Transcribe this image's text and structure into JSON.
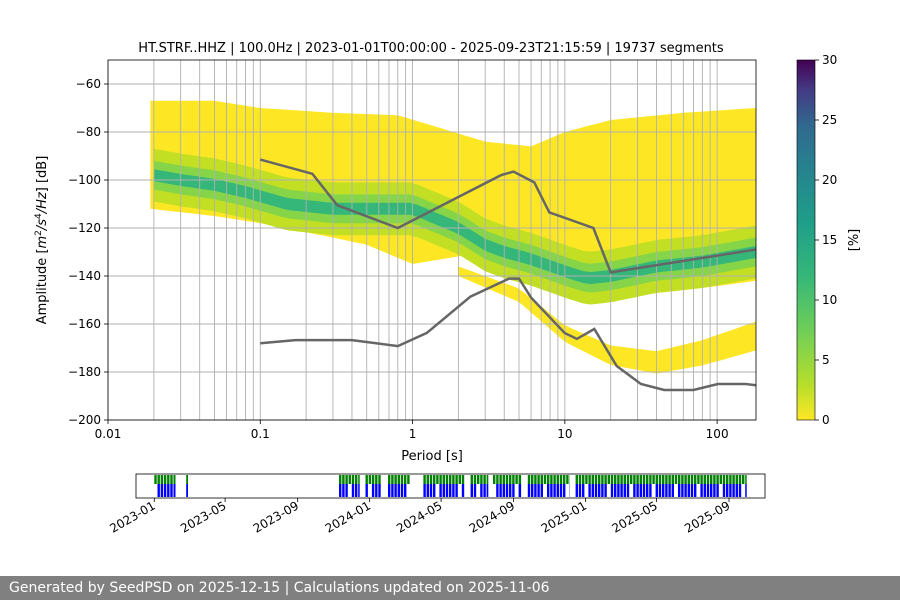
{
  "footer": {
    "text": "Generated by SeedPSD on 2025-12-15 | Calculations updated on 2025-11-06"
  },
  "colors": {
    "primary": "#d2d2d2",
    "accent": "#808080",
    "background": "#ffffff",
    "text": "#000000",
    "grid": "#b0b0b0",
    "noise_model": "#666666",
    "coverage_data": "#0000ff",
    "coverage_green": "#008000"
  },
  "chart_data": [
    {
      "type": "heatmap",
      "title": "HT.STRF..HHZ | 100.0Hz | 2023-01-01T00:00:00 - 2025-09-23T21:15:59 | 19737 segments",
      "xlabel": "Period [s]",
      "ylabel": "Amplitude [m^2/s^4/Hz] [dB]",
      "xscale": "log",
      "xlim": [
        0.01,
        180
      ],
      "ylim": [
        -200,
        -50
      ],
      "xticks": [
        "0.01",
        "0.1",
        "1",
        "10",
        "100"
      ],
      "yticks": [
        "−60",
        "−80",
        "−100",
        "−120",
        "−140",
        "−160",
        "−180",
        "−200"
      ],
      "colorbar": {
        "label": "[%]",
        "range": [
          0,
          30
        ],
        "ticks": [
          "0",
          "5",
          "10",
          "15",
          "20",
          "25",
          "30"
        ]
      },
      "mode_curve": [
        [
          0.02,
          -98
        ],
        [
          0.03,
          -100
        ],
        [
          0.05,
          -102
        ],
        [
          0.08,
          -105
        ],
        [
          0.15,
          -110
        ],
        [
          0.3,
          -112
        ],
        [
          0.5,
          -112
        ],
        [
          1,
          -112
        ],
        [
          2,
          -120
        ],
        [
          3,
          -127
        ],
        [
          4,
          -130
        ],
        [
          6,
          -133
        ],
        [
          10,
          -138
        ],
        [
          14,
          -141
        ],
        [
          20,
          -140
        ],
        [
          40,
          -136
        ],
        [
          80,
          -134
        ],
        [
          180,
          -130
        ]
      ],
      "upper_edge": [
        [
          0.019,
          -67
        ],
        [
          0.05,
          -67
        ],
        [
          0.1,
          -70
        ],
        [
          0.3,
          -72
        ],
        [
          0.8,
          -73
        ],
        [
          3,
          -84
        ],
        [
          6,
          -86
        ],
        [
          10,
          -80
        ],
        [
          20,
          -75
        ],
        [
          60,
          -72
        ],
        [
          180,
          -70
        ]
      ],
      "lower_edge": [
        [
          0.019,
          -112
        ],
        [
          0.05,
          -115
        ],
        [
          0.1,
          -118
        ],
        [
          0.3,
          -124
        ],
        [
          0.5,
          -127
        ],
        [
          1,
          -135
        ],
        [
          3,
          -130
        ],
        [
          5,
          -140
        ],
        [
          7,
          -145
        ],
        [
          15,
          -148
        ],
        [
          30,
          -148
        ],
        [
          80,
          -145
        ],
        [
          180,
          -142
        ]
      ],
      "outlier_band": [
        [
          2,
          -138
        ],
        [
          5,
          -148
        ],
        [
          10,
          -164
        ],
        [
          20,
          -173
        ],
        [
          40,
          -176
        ],
        [
          80,
          -172
        ],
        [
          180,
          -165
        ]
      ],
      "nhnm": [
        [
          0.1,
          -91.5
        ],
        [
          0.22,
          -97.4
        ],
        [
          0.32,
          -110.5
        ],
        [
          0.8,
          -120
        ],
        [
          3.8,
          -98
        ],
        [
          4.6,
          -96.5
        ],
        [
          6.3,
          -101
        ],
        [
          7.9,
          -113.5
        ],
        [
          15.4,
          -120
        ],
        [
          20,
          -138.5
        ],
        [
          354.8,
          -126
        ]
      ],
      "nlnm": [
        [
          0.1,
          -168
        ],
        [
          0.17,
          -166.7
        ],
        [
          0.4,
          -166.7
        ],
        [
          0.8,
          -169.2
        ],
        [
          1.24,
          -163.7
        ],
        [
          2.4,
          -148.6
        ],
        [
          4.3,
          -141.1
        ],
        [
          5,
          -141.1
        ],
        [
          6,
          -149
        ],
        [
          10,
          -163.8
        ],
        [
          12,
          -166.2
        ],
        [
          15.6,
          -162.1
        ],
        [
          21.9,
          -177.5
        ],
        [
          31.6,
          -185
        ],
        [
          45,
          -187.5
        ],
        [
          70,
          -187.5
        ],
        [
          101,
          -185
        ],
        [
          154,
          -185
        ],
        [
          328,
          -187.5
        ]
      ]
    },
    {
      "type": "bar",
      "title": "data coverage",
      "xticks": [
        "2023-01",
        "2023-05",
        "2023-09",
        "2024-01",
        "2024-05",
        "2024-09",
        "2025-01",
        "2025-05",
        "2025-09"
      ],
      "range_start": "2022-12-01",
      "range_end": "2025-11-01",
      "coverage_periods": [
        [
          "2023-01-01",
          "2023-02-06"
        ],
        [
          "2023-02-24",
          "2023-02-27"
        ],
        [
          "2023-11-10",
          "2023-12-15"
        ],
        [
          "2023-12-25",
          "2024-01-20"
        ],
        [
          "2024-02-01",
          "2024-03-10"
        ],
        [
          "2024-04-01",
          "2024-06-10"
        ],
        [
          "2024-06-20",
          "2024-07-20"
        ],
        [
          "2024-07-28",
          "2024-09-15"
        ],
        [
          "2024-09-25",
          "2024-12-05"
        ],
        [
          "2024-12-15",
          "2025-10-01"
        ]
      ]
    }
  ]
}
